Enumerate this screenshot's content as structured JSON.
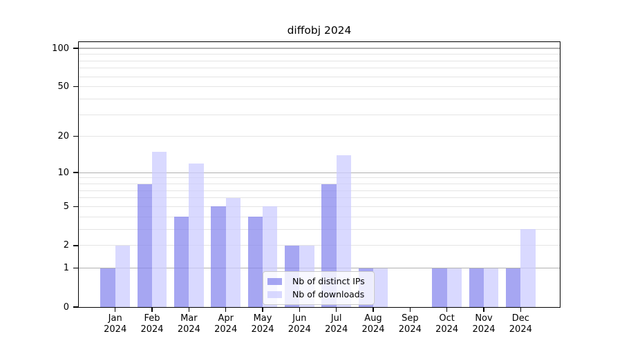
{
  "title": "diffobj 2024",
  "legend": {
    "items": [
      {
        "label": "Nb of distinct IPs"
      },
      {
        "label": "Nb of downloads"
      }
    ]
  },
  "chart_data": {
    "type": "bar",
    "title": "diffobj 2024",
    "categories": [
      "Jan",
      "Feb",
      "Mar",
      "Apr",
      "May",
      "Jun",
      "Jul",
      "Aug",
      "Sep",
      "Oct",
      "Nov",
      "Dec"
    ],
    "year": "2024",
    "series": [
      {
        "name": "Nb of distinct IPs",
        "color": "#8888ee",
        "alpha": 0.75,
        "values": [
          1,
          8,
          4,
          5,
          4,
          2,
          8,
          1,
          0,
          1,
          1,
          1
        ]
      },
      {
        "name": "Nb of downloads",
        "color": "#ccccff",
        "alpha": 0.75,
        "values": [
          2,
          15,
          12,
          6,
          5,
          2,
          14,
          1,
          0,
          1,
          1,
          3
        ]
      }
    ],
    "xlabel": "",
    "ylabel": "",
    "yscale": "log1p",
    "ylim": [
      0,
      112
    ],
    "yticks": [
      0,
      1,
      2,
      5,
      10,
      20,
      50,
      100
    ],
    "grid": {
      "major": [
        1,
        10,
        100
      ],
      "minor": [
        2,
        3,
        4,
        5,
        6,
        7,
        8,
        9,
        20,
        30,
        40,
        50,
        60,
        70,
        80,
        90
      ],
      "major_color": "#b0b0b0",
      "minor_color": "#e4e4e4"
    },
    "legend_position": "lower center",
    "bar_color_dark_rendered": "#a6a6f2",
    "bar_color_light_rendered": "#d9d9f8"
  }
}
